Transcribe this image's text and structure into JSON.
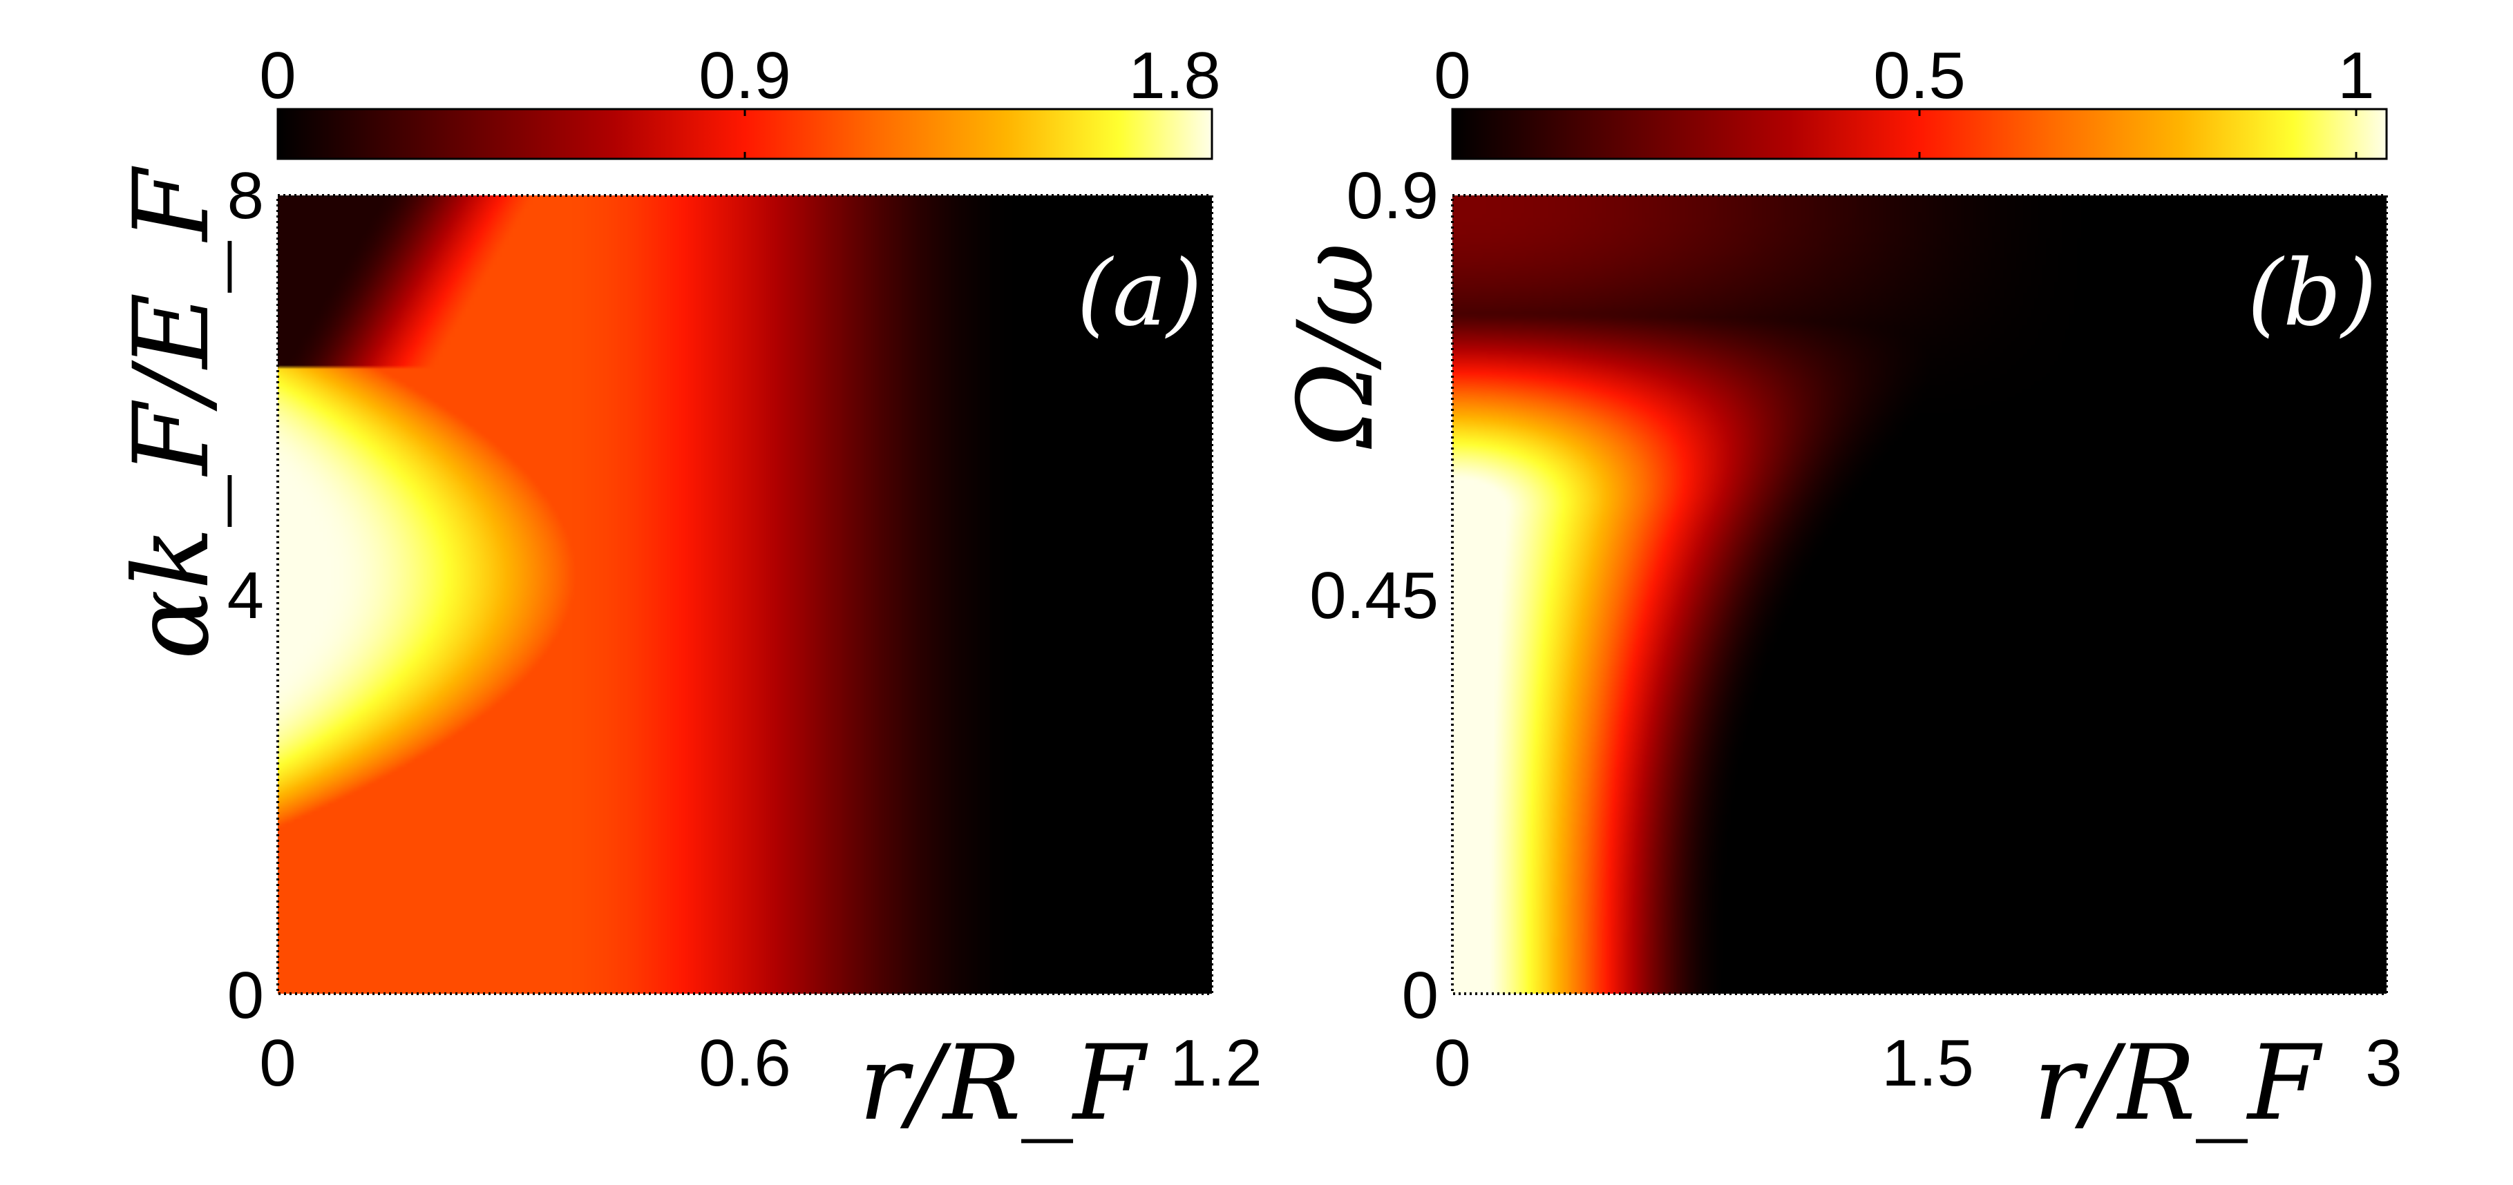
{
  "chart_data": [
    {
      "type": "heatmap",
      "panel_label": "(a)",
      "xlabel": "r/R_F",
      "ylabel": "αk_F/E_F",
      "xlim": [
        0,
        1.2
      ],
      "ylim": [
        0,
        8
      ],
      "xticks": [
        "0",
        "0.6",
        "1.2"
      ],
      "yticks": [
        "0",
        "4",
        "8"
      ],
      "colorbar": {
        "range": [
          0,
          1.8
        ],
        "ticks": [
          "0",
          "0.9",
          "1.8"
        ],
        "position": "top",
        "colormap": "hot"
      },
      "description_values": {
        "max_region": {
          "x": 0.0,
          "y": 4.2,
          "value": 1.8
        },
        "ridge_top_y_at_x0": 6.3,
        "zero_region_x_min": 0.9
      }
    },
    {
      "type": "heatmap",
      "panel_label": "(b)",
      "xlabel": "r/R_F",
      "ylabel": "Ω/ω",
      "xlim": [
        0,
        3
      ],
      "ylim": [
        0,
        0.9
      ],
      "xticks": [
        "0",
        "1.5",
        "3"
      ],
      "yticks": [
        "0",
        "0.45",
        "0.9"
      ],
      "colorbar": {
        "range": [
          0,
          1
        ],
        "ticks": [
          "0",
          "0.5",
          "1"
        ],
        "position": "top",
        "colormap": "hot"
      },
      "description_values": {
        "max_region": {
          "x": 0.0,
          "y": 0.0,
          "value": 1.0
        },
        "edge_x_at_y0": 0.88,
        "cutoff_y_at_x0": 0.77
      }
    }
  ],
  "colors": {
    "colormap_stops": [
      "#000000",
      "#5a0000",
      "#b00000",
      "#ff1800",
      "#ff6a00",
      "#ffb400",
      "#ffff30",
      "#ffffe8"
    ],
    "background": "#ffffff",
    "panel_label_color": "#ffffff"
  }
}
